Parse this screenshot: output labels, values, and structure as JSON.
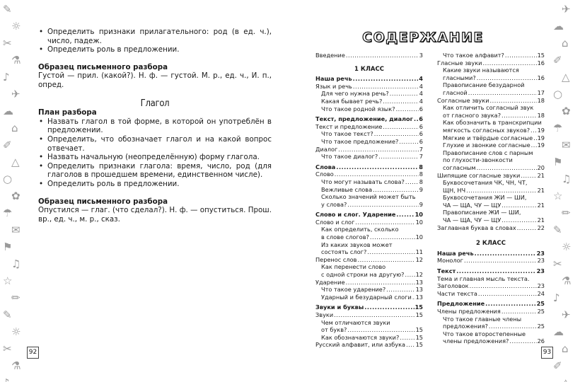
{
  "left_page": {
    "page_number": "92",
    "top_bullets": [
      "Определить признаки прилагательного: род (в ед. ч.), число, падеж.",
      "Определить роль в предложении."
    ],
    "sample1_heading": "Образец письменного разбора",
    "sample1_text": "Густой — прил. (какой?). Н. ф. — густой. М. р., ед. ч., И. п., опред.",
    "section_title": "Глагол",
    "plan_heading": "План разбора",
    "plan_bullets": [
      "Назвать глагол в той форме, в которой он употреблён в предложении.",
      "Определить, что обозначает глагол и на какой вопрос отвечает.",
      "Назвать начальную (неопределённую) форму глагола.",
      "Определить признаки глагола: время, число, род (для глаголов в прошедшем времени, единственном числе).",
      "Определить роль в предложении."
    ],
    "sample2_heading": "Образец письменного разбора",
    "sample2_text": "Опустился — глаг. (что сделал?). Н. ф. — опуститься. Прош. вр., ед. ч., м. р., сказ."
  },
  "right_page": {
    "page_number": "93",
    "title": "СОДЕРЖАНИЕ",
    "intro": {
      "t": "Введение",
      "p": "3"
    },
    "class1": "1 КЛАСС",
    "class2": "2 КЛАСС",
    "col1": [
      {
        "t": "Наша речь",
        "p": "4",
        "lvl": 0
      },
      {
        "t": "Язык и речь",
        "p": "4",
        "lvl": 1
      },
      {
        "t": "Для чего нужна речь?",
        "p": "4",
        "lvl": 2
      },
      {
        "t": "Какая бывает речь?",
        "p": "4",
        "lvl": 2
      },
      {
        "t": "Что такое родной язык?",
        "p": "6",
        "lvl": 2
      },
      {
        "t": "Текст, предложение, диалог",
        "p": "6",
        "lvl": 0
      },
      {
        "t": "Текст и предложение",
        "p": "6",
        "lvl": 1
      },
      {
        "t": "Что такое текст?",
        "p": "6",
        "lvl": 2
      },
      {
        "t": "Что такое предложение?",
        "p": "6",
        "lvl": 2
      },
      {
        "t": "Диалог",
        "p": "7",
        "lvl": 1
      },
      {
        "t": "Что такое диалог?",
        "p": "7",
        "lvl": 2
      },
      {
        "t": "Слова",
        "p": "8",
        "lvl": 0
      },
      {
        "t": "Слово",
        "p": "8",
        "lvl": 1
      },
      {
        "t": "Что могут называть слова?",
        "p": "8",
        "lvl": 2
      },
      {
        "t": "Вежливые слова",
        "p": "9",
        "lvl": 2
      },
      {
        "pre": "Сколько значений может быть",
        "t": "у слова?",
        "p": "9",
        "lvl": 2
      },
      {
        "t": "Слово и слог. Ударение",
        "p": "10",
        "lvl": 0
      },
      {
        "t": "Слово и слог",
        "p": "10",
        "lvl": 1
      },
      {
        "pre": "Как определить, сколько",
        "t": "в слове слогов?",
        "p": "10",
        "lvl": 2
      },
      {
        "pre": "Из каких звуков может",
        "t": "состоять слог?",
        "p": "11",
        "lvl": 2
      },
      {
        "t": "Перенос слов",
        "p": "12",
        "lvl": 1
      },
      {
        "pre": "Как перенести слово",
        "t": "с одной строки на другую?",
        "p": "12",
        "lvl": 2
      },
      {
        "t": "Ударение",
        "p": "13",
        "lvl": 1
      },
      {
        "t": "Что такое ударение?",
        "p": "13",
        "lvl": 2
      },
      {
        "t": "Ударный и безударный слоги",
        "p": "13",
        "lvl": 2
      },
      {
        "t": "Звуки и буквы",
        "p": "15",
        "lvl": 0
      },
      {
        "t": "Звуки",
        "p": "15",
        "lvl": 1
      },
      {
        "pre": "Чем отличаются звуки",
        "t": "от букв?",
        "p": "15",
        "lvl": 2
      },
      {
        "t": "Как обозначаются звуки?",
        "p": "15",
        "lvl": 2
      },
      {
        "t": "Русский алфавит, или азбука",
        "p": "15",
        "lvl": 1
      }
    ],
    "col2a": [
      {
        "t": "Что такое алфавит?",
        "p": "15",
        "lvl": 2
      },
      {
        "t": "Гласные звуки",
        "p": "16",
        "lvl": 1
      },
      {
        "pre": "Какие звуки называются",
        "t": "гласными?",
        "p": "16",
        "lvl": 2
      },
      {
        "pre": "Правописание безударной",
        "t": "гласной",
        "p": "17",
        "lvl": 2
      },
      {
        "t": "Согласные звуки",
        "p": "18",
        "lvl": 1
      },
      {
        "pre": "Как отличить согласный звук",
        "t": "от гласного звука?",
        "p": "18",
        "lvl": 2
      },
      {
        "pre": "Как обозначить в транскрипции",
        "t": "мягкость согласных звуков?",
        "p": "19",
        "lvl": 2
      },
      {
        "t": "Мягкие и твёрдые согласные",
        "p": "19",
        "lvl": 2
      },
      {
        "t": "Глухие и звонкие согласные",
        "p": "19",
        "lvl": 2
      },
      {
        "pre": "Правописание слов с парным",
        "pre2": "по глухости-звонкости",
        "t": "согласным",
        "p": "20",
        "lvl": 2
      },
      {
        "t": "Шипящие согласные звуки",
        "p": "21",
        "lvl": 1
      },
      {
        "pre": "Буквосочетания ЧК, ЧН, ЧТ,",
        "t": "ЩН, НЧ",
        "p": "21",
        "lvl": 2
      },
      {
        "pre": "Буквосочетания ЖИ — ШИ,",
        "t": "ЧА — ЩА, ЧУ — ЩУ",
        "p": "21",
        "lvl": 2
      },
      {
        "pre": "Правописание ЖИ — ШИ,",
        "t": "ЧА — ЩА, ЧУ — ЩУ",
        "p": "21",
        "lvl": 2
      },
      {
        "t": "Заглавная буква в словах",
        "p": "22",
        "lvl": 1
      }
    ],
    "col2b": [
      {
        "t": "Наша речь",
        "p": "23",
        "lvl": 0
      },
      {
        "t": "Монолог",
        "p": "23",
        "lvl": 1
      },
      {
        "t": "Текст",
        "p": "23",
        "lvl": 0
      },
      {
        "pre": "Тема и главная мысль текста.",
        "t": "Заголовок",
        "p": "23",
        "lvl": 1
      },
      {
        "t": "Части текста",
        "p": "24",
        "lvl": 1
      },
      {
        "t": "Предложение",
        "p": "25",
        "lvl": 0
      },
      {
        "t": "Члены предложения",
        "p": "25",
        "lvl": 1
      },
      {
        "pre": "Что такое главные члены",
        "t": "предложения?",
        "p": "25",
        "lvl": 2
      },
      {
        "pre": "Что такое второстепенные",
        "t": "члены предложения?",
        "p": "26",
        "lvl": 2
      }
    ]
  },
  "decor": {
    "color": "#9a9a9a"
  }
}
